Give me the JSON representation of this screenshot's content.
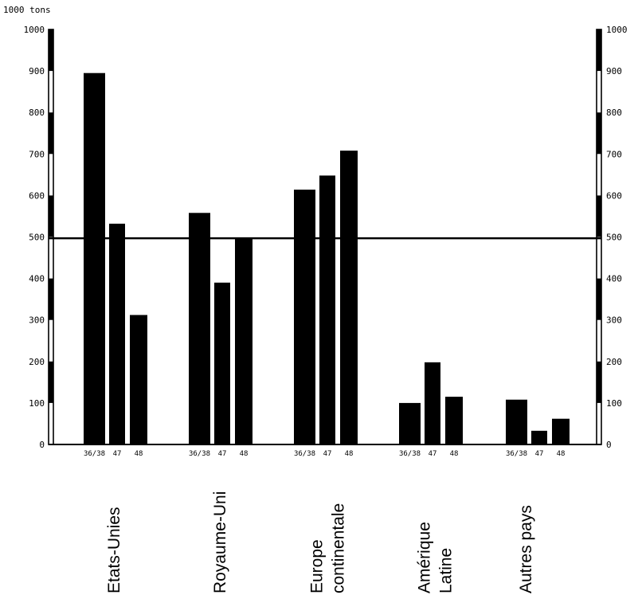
{
  "chart_data": {
    "type": "bar",
    "unit_label": "1000 tons",
    "groups": [
      {
        "label": [
          "Etats-Unies"
        ],
        "bars": [
          {
            "period": "36/38",
            "value": 895
          },
          {
            "period": "47",
            "value": 532
          },
          {
            "period": "48",
            "value": 312
          }
        ]
      },
      {
        "label": [
          "Royaume-Uni"
        ],
        "bars": [
          {
            "period": "36/38",
            "value": 558
          },
          {
            "period": "47",
            "value": 390
          },
          {
            "period": "48",
            "value": 497
          }
        ]
      },
      {
        "label": [
          "Europe",
          "continentale"
        ],
        "bars": [
          {
            "period": "36/38",
            "value": 614
          },
          {
            "period": "47",
            "value": 648
          },
          {
            "period": "48",
            "value": 708
          }
        ]
      },
      {
        "label": [
          "Amérique",
          "Latine"
        ],
        "bars": [
          {
            "period": "36/38",
            "value": 100
          },
          {
            "period": "47",
            "value": 198
          },
          {
            "period": "48",
            "value": 115
          }
        ]
      },
      {
        "label": [
          "Autres pays"
        ],
        "bars": [
          {
            "period": "36/38",
            "value": 108
          },
          {
            "period": "47",
            "value": 33
          },
          {
            "period": "48",
            "value": 62
          }
        ]
      }
    ],
    "ylim": [
      0,
      1000
    ],
    "yticks": [
      "0",
      "100",
      "200",
      "300",
      "400",
      "500",
      "600",
      "700",
      "800",
      "900",
      "1000"
    ],
    "reference_line": 497,
    "grid": false,
    "legend": "none",
    "colors": {
      "bars": "#000000",
      "background": "#ffffff"
    }
  }
}
